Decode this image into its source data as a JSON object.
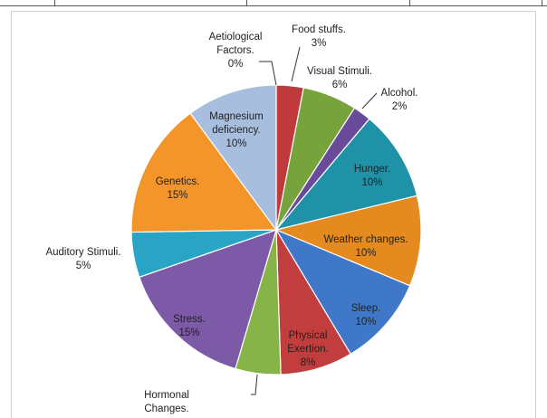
{
  "chart_data": {
    "type": "pie",
    "title": "",
    "slices": [
      {
        "label": "Aetiological Factors.",
        "value": 0,
        "color": "#9bb7d8"
      },
      {
        "label": "Food stuffs.",
        "value": 3,
        "color": "#c0393b"
      },
      {
        "label": "Visual Stimuli.",
        "value": 6,
        "color": "#77a33d"
      },
      {
        "label": "Alcohol.",
        "value": 2,
        "color": "#6a4a9a"
      },
      {
        "label": "Hunger.",
        "value": 10,
        "color": "#1f92a8"
      },
      {
        "label": "Weather changes.",
        "value": 10,
        "color": "#e58a1f"
      },
      {
        "label": "Sleep.",
        "value": 10,
        "color": "#3f78c8"
      },
      {
        "label": "Physical Exertion.",
        "value": 8,
        "color": "#c23e3e"
      },
      {
        "label": "Hormonal Changes.",
        "value": 5,
        "color": "#86b449"
      },
      {
        "label": "Stress.",
        "value": 15,
        "color": "#7c5aa8"
      },
      {
        "label": "Auditory Stimuli.",
        "value": 5,
        "color": "#2aa4c4"
      },
      {
        "label": "Genetics.",
        "value": 15,
        "color": "#f4952a"
      },
      {
        "label": "Magnesium deficiency.",
        "value": 10,
        "color": "#a8bedf"
      }
    ],
    "labels": [
      {
        "lines": [
          "Aetiological",
          "Factors."
        ],
        "pct": "0%"
      },
      {
        "lines": [
          "Food stuffs."
        ],
        "pct": "3%"
      },
      {
        "lines": [
          "Visual Stimuli."
        ],
        "pct": "6%"
      },
      {
        "lines": [
          "Alcohol."
        ],
        "pct": "2%"
      },
      {
        "lines": [
          "Hunger."
        ],
        "pct": "10%"
      },
      {
        "lines": [
          "Weather changes."
        ],
        "pct": "10%"
      },
      {
        "lines": [
          "Sleep."
        ],
        "pct": "10%"
      },
      {
        "lines": [
          "Physical",
          "Exertion."
        ],
        "pct": "8%"
      },
      {
        "lines": [
          "Hormonal",
          "Changes."
        ],
        "pct": ""
      },
      {
        "lines": [
          "Stress."
        ],
        "pct": "15%"
      },
      {
        "lines": [
          "Auditory Stimuli."
        ],
        "pct": "5%"
      },
      {
        "lines": [
          "Genetics."
        ],
        "pct": "15%"
      },
      {
        "lines": [
          "Magnesium",
          "deficiency."
        ],
        "pct": "10%"
      }
    ]
  }
}
